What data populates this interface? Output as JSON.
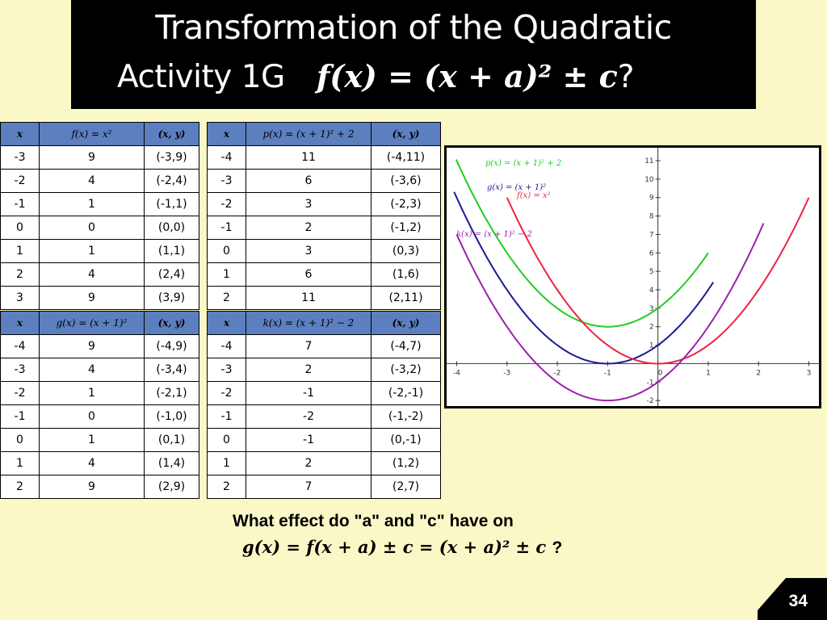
{
  "title": {
    "line1": "Transformation of  the Quadratic",
    "line2_text": "Activity 1G",
    "line2_formula": "f(x) = (x + a)² ± c",
    "line2_end": "?"
  },
  "tables": {
    "f": {
      "headers": [
        "x",
        "f(x) = x²",
        "(x, y)"
      ],
      "rows": [
        [
          "-3",
          "9",
          "(-3,9)"
        ],
        [
          "-2",
          "4",
          "(-2,4)"
        ],
        [
          "-1",
          "1",
          "(-1,1)"
        ],
        [
          "0",
          "0",
          "(0,0)"
        ],
        [
          "1",
          "1",
          "(1,1)"
        ],
        [
          "2",
          "4",
          "(2,4)"
        ],
        [
          "3",
          "9",
          "(3,9)"
        ]
      ]
    },
    "p": {
      "headers": [
        "x",
        "p(x) = (x + 1)² + 2",
        "(x, y)"
      ],
      "rows": [
        [
          "-4",
          "11",
          "(-4,11)"
        ],
        [
          "-3",
          "6",
          "(-3,6)"
        ],
        [
          "-2",
          "3",
          "(-2,3)"
        ],
        [
          "-1",
          "2",
          "(-1,2)"
        ],
        [
          "0",
          "3",
          "(0,3)"
        ],
        [
          "1",
          "6",
          "(1,6)"
        ],
        [
          "2",
          "11",
          "(2,11)"
        ]
      ]
    },
    "g": {
      "headers": [
        "x",
        "g(x) = (x + 1)²",
        "(x, y)"
      ],
      "rows": [
        [
          "-4",
          "9",
          "(-4,9)"
        ],
        [
          "-3",
          "4",
          "(-3,4)"
        ],
        [
          "-2",
          "1",
          "(-2,1)"
        ],
        [
          "-1",
          "0",
          "(-1,0)"
        ],
        [
          "0",
          "1",
          "(0,1)"
        ],
        [
          "1",
          "4",
          "(1,4)"
        ],
        [
          "2",
          "9",
          "(2,9)"
        ]
      ]
    },
    "k": {
      "headers": [
        "x",
        "k(x) = (x + 1)² − 2",
        "(x, y)"
      ],
      "rows": [
        [
          "-4",
          "7",
          "(-4,7)"
        ],
        [
          "-3",
          "2",
          "(-3,2)"
        ],
        [
          "-2",
          "-1",
          "(-2,-1)"
        ],
        [
          "-1",
          "-2",
          "(-1,-2)"
        ],
        [
          "0",
          "-1",
          "(0,-1)"
        ],
        [
          "1",
          "2",
          "(1,2)"
        ],
        [
          "2",
          "7",
          "(2,7)"
        ]
      ]
    }
  },
  "chart_data": {
    "type": "line",
    "xlim": [
      -4.2,
      3.2
    ],
    "ylim": [
      -2.3,
      11.7
    ],
    "x_ticks": [
      -4,
      -3,
      -2,
      -1,
      0,
      1,
      2,
      3
    ],
    "y_ticks": [
      -2,
      -1,
      1,
      2,
      3,
      4,
      5,
      6,
      7,
      8,
      9,
      10,
      11
    ],
    "x_tick_labels": [
      "-4",
      "-3",
      "-2",
      "-1",
      "0",
      "1",
      "2",
      "3"
    ],
    "y_tick_labels": [
      "-2",
      "-1",
      "1",
      "2",
      "3",
      "4",
      "5",
      "6",
      "7",
      "8",
      "9",
      "10",
      "11"
    ],
    "series": [
      {
        "name": "p(x) = (x + 1)² + 2",
        "color": "#22cc22",
        "a": 1,
        "h": -1,
        "k": 2,
        "x_range": [
          -4.01,
          1.0
        ]
      },
      {
        "name": "g(x) = (x + 1)²",
        "color": "#1a1a99",
        "a": 1,
        "h": -1,
        "k": 0,
        "x_range": [
          -4.05,
          1.1
        ]
      },
      {
        "name": "f(x) = x²",
        "color": "#ee2244",
        "a": 1,
        "h": 0,
        "k": 0,
        "x_range": [
          -3.0,
          3.0
        ]
      },
      {
        "name": "k(x) = (x + 1)² − 2",
        "color": "#9922aa",
        "a": 1,
        "h": -1,
        "k": -2,
        "x_range": [
          -4.0,
          2.1
        ]
      }
    ]
  },
  "question": {
    "line1": "What effect do \"a\" and \"c\" have on",
    "line2": "g(x) = f(x + a) ± c = (x + a)² ± c",
    "end": "?"
  },
  "page_number": "34"
}
